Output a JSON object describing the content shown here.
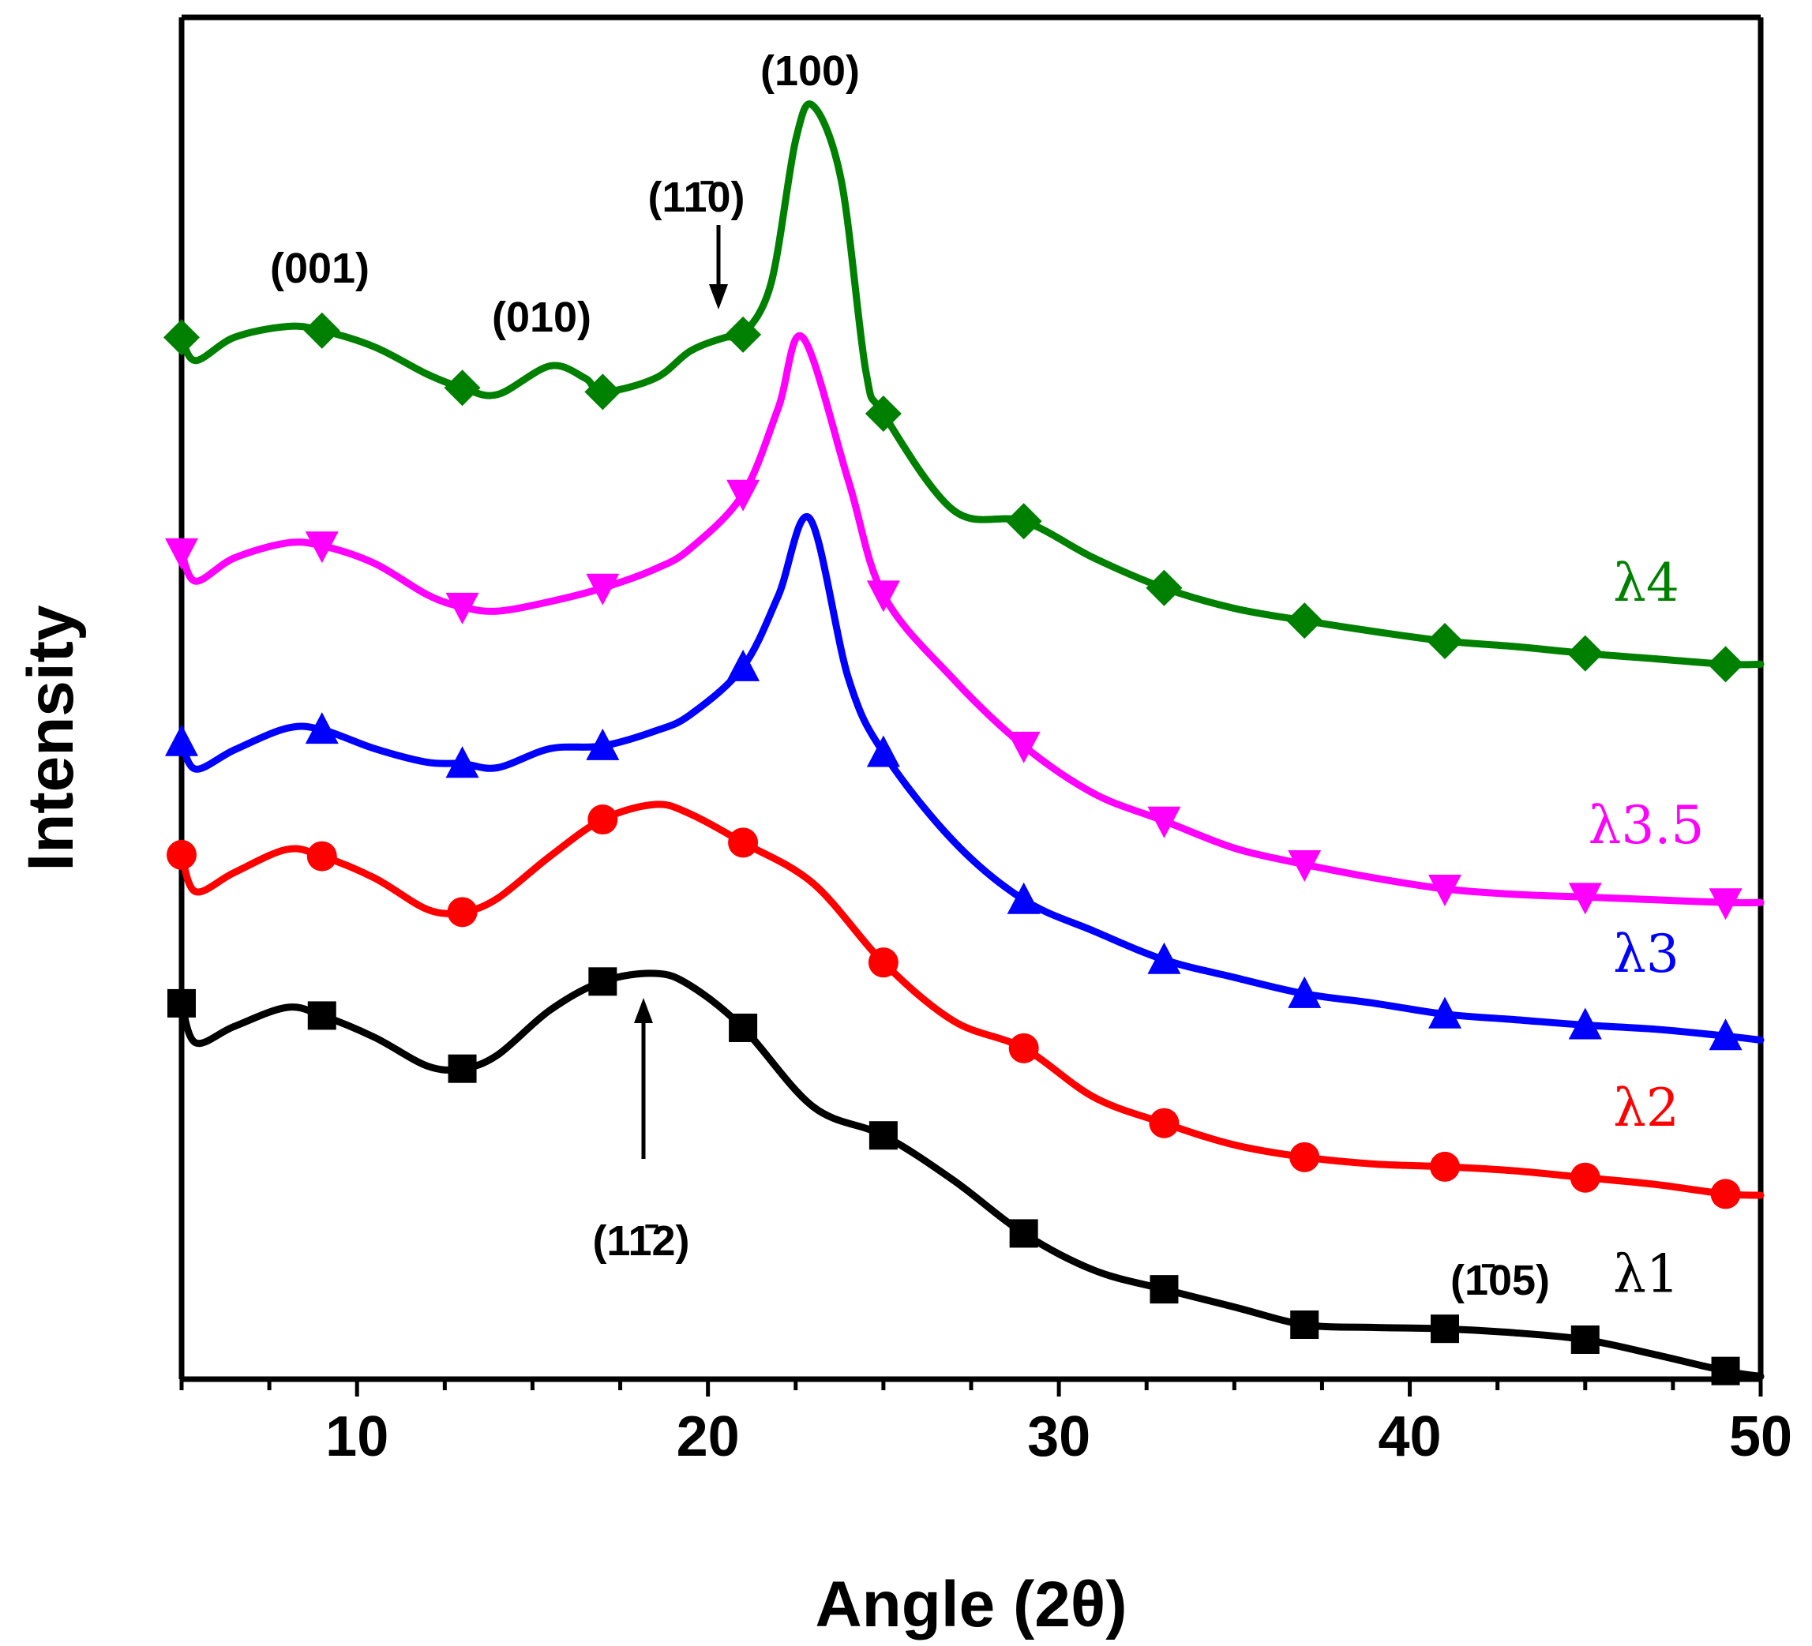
{
  "chart_data": {
    "type": "line",
    "title": "",
    "xlabel": "Angle (2θ)",
    "ylabel": "Intensity",
    "xlim": [
      5,
      50
    ],
    "ylim": [
      0,
      100
    ],
    "xticks": [
      10,
      20,
      30,
      40,
      50
    ],
    "grid": false,
    "legend": "inline-right",
    "marker_x": [
      5,
      9,
      13,
      17,
      21,
      25,
      29,
      33,
      37,
      41,
      45,
      49
    ],
    "series": [
      {
        "name": "λ1",
        "color": "#000000",
        "marker": "square",
        "x": [
          5,
          5.4,
          6.5,
          8,
          9,
          10.5,
          12,
          13,
          14,
          15.5,
          17,
          18.5,
          19.5,
          21,
          23,
          25,
          27,
          29,
          31,
          33,
          35,
          37,
          39,
          41,
          43,
          45,
          47,
          49,
          50
        ],
        "y": [
          27.6,
          24.7,
          25.9,
          27.3,
          26.7,
          25.1,
          23.0,
          22.8,
          23.8,
          27.1,
          29.2,
          29.8,
          28.9,
          25.8,
          20.0,
          17.9,
          14.6,
          10.7,
          8.0,
          6.6,
          5.3,
          4.0,
          3.8,
          3.7,
          3.4,
          2.9,
          1.8,
          0.6,
          0.2
        ]
      },
      {
        "name": "λ2",
        "color": "#ff0000",
        "marker": "circle",
        "x": [
          5,
          5.4,
          6.5,
          8,
          9,
          10.5,
          12,
          13,
          14,
          15.5,
          17,
          18.5,
          19.5,
          21,
          23,
          25,
          27,
          29,
          31,
          33,
          35,
          37,
          39,
          41,
          43,
          45,
          47,
          49,
          50
        ],
        "y": [
          38.5,
          35.8,
          37.2,
          38.9,
          38.4,
          36.8,
          34.5,
          34.3,
          35.3,
          38.4,
          41.1,
          42.2,
          41.5,
          39.4,
          36.4,
          30.6,
          26.3,
          24.3,
          20.7,
          18.8,
          17.2,
          16.3,
          15.8,
          15.6,
          15.3,
          14.8,
          14.3,
          13.6,
          13.5
        ]
      },
      {
        "name": "λ3",
        "color": "#0000ff",
        "marker": "triangle-up",
        "x": [
          5,
          5.4,
          6.5,
          8,
          9,
          10.5,
          12,
          13,
          14,
          15.5,
          17,
          18.5,
          19.5,
          21,
          22,
          22.9,
          24,
          25,
          27,
          29,
          31,
          33,
          35,
          37,
          39,
          41,
          43,
          45,
          47,
          49,
          50
        ],
        "y": [
          46.8,
          44.8,
          46.2,
          47.8,
          47.7,
          46.3,
          45.3,
          45.2,
          44.9,
          46.3,
          46.5,
          47.6,
          48.8,
          52.3,
          57.5,
          63.2,
          51.5,
          46.0,
          39.5,
          35.2,
          32.9,
          30.8,
          29.5,
          28.3,
          27.6,
          26.8,
          26.4,
          26.0,
          25.7,
          25.2,
          24.9
        ]
      },
      {
        "name": "λ3.5",
        "color": "#ff00ff",
        "marker": "triangle-down",
        "x": [
          5,
          5.4,
          6.5,
          8,
          9,
          10.5,
          12,
          13,
          14,
          15.5,
          17,
          18.5,
          19.5,
          21,
          22,
          22.7,
          24,
          25,
          27,
          29,
          31,
          33,
          35,
          37,
          39,
          41,
          43,
          45,
          47,
          49,
          50
        ],
        "y": [
          60.7,
          58.6,
          60.3,
          61.4,
          61.2,
          59.9,
          57.6,
          56.7,
          56.4,
          57.1,
          58.1,
          59.5,
          61.0,
          65.0,
          71.3,
          76.5,
          66.0,
          57.6,
          51.4,
          46.5,
          43.0,
          41.0,
          39.0,
          37.8,
          36.8,
          36.0,
          35.6,
          35.4,
          35.2,
          35.0,
          35.0
        ]
      },
      {
        "name": "λ4",
        "color": "#008000",
        "marker": "diamond",
        "x": [
          5,
          5.4,
          6.5,
          8,
          9,
          10.5,
          12,
          13,
          14,
          15.5,
          16.5,
          17,
          18.5,
          19.5,
          20.5,
          21,
          21.8,
          22.5,
          23,
          23.8,
          24.5,
          25,
          27,
          29,
          31,
          33,
          35,
          37,
          39,
          41,
          43,
          45,
          47,
          49,
          50
        ],
        "y": [
          76.5,
          74.8,
          76.5,
          77.3,
          77.0,
          75.8,
          73.8,
          72.8,
          72.3,
          74.4,
          73.5,
          72.5,
          73.5,
          75.5,
          76.5,
          76.7,
          80.5,
          91.0,
          93.5,
          88.0,
          74.0,
          70.9,
          63.8,
          63.0,
          60.3,
          58.1,
          56.6,
          55.7,
          54.9,
          54.2,
          53.8,
          53.3,
          52.9,
          52.5,
          52.5
        ]
      }
    ],
    "annotations": [
      {
        "text": "(001)"
      },
      {
        "text": "(010)"
      },
      {
        "text": "(11̄0)"
      },
      {
        "text": "(100)"
      },
      {
        "text": "(11̄2)"
      },
      {
        "text": "(1̄05)"
      }
    ]
  }
}
